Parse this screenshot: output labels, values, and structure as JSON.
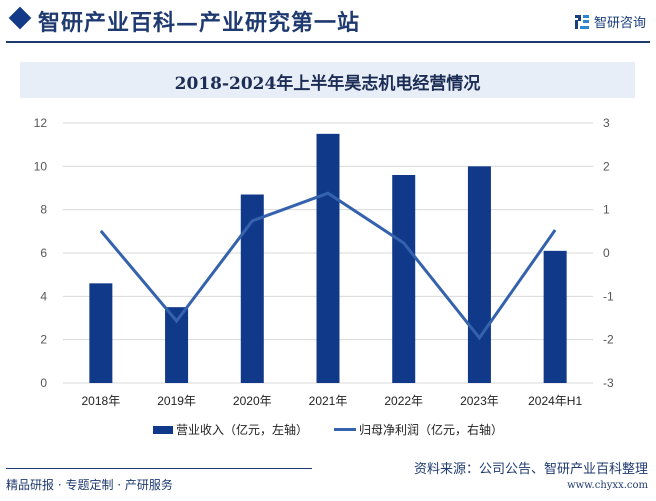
{
  "header": {
    "site_title": "智研产业百科—产业研究第一站",
    "brand_name": "智研咨询"
  },
  "chart_title": "2018-2024年上半年昊志机电经营情况",
  "legend": {
    "bar_label": "营业收入（亿元，左轴）",
    "line_label": "归母净利润（亿元，右轴）"
  },
  "footer": {
    "tagline": "精品研报 · 专题定制 · 产研服务",
    "source": "资料来源：公司公告、智研产业百科整理",
    "url": "www.chyxx.com"
  },
  "colors": {
    "bar": "#10398a",
    "line": "#3562ad",
    "accent": "#1f3a70",
    "title_bg": "#e8eef7"
  },
  "chart_data": {
    "type": "bar",
    "title": "2018-2024年上半年昊志机电经营情况",
    "categories": [
      "2018年",
      "2019年",
      "2020年",
      "2021年",
      "2022年",
      "2023年",
      "2024年H1"
    ],
    "series": [
      {
        "name": "营业收入（亿元，左轴）",
        "type": "bar",
        "axis": "left",
        "values": [
          4.6,
          3.5,
          8.7,
          11.5,
          9.6,
          10.0,
          6.1
        ]
      },
      {
        "name": "归母净利润（亿元，右轴）",
        "type": "line",
        "axis": "right",
        "values": [
          0.51,
          -1.57,
          0.74,
          1.38,
          0.23,
          -1.96,
          0.53
        ]
      }
    ],
    "left_axis": {
      "ylim": [
        0,
        12
      ],
      "ticks": [
        "0",
        "2",
        "4",
        "6",
        "8",
        "10",
        "12"
      ]
    },
    "right_axis": {
      "ylim": [
        -3,
        3
      ],
      "ticks": [
        "-3",
        "-2",
        "-1",
        "0",
        "1",
        "2",
        "3"
      ]
    },
    "grid": true,
    "legend_position": "bottom"
  }
}
